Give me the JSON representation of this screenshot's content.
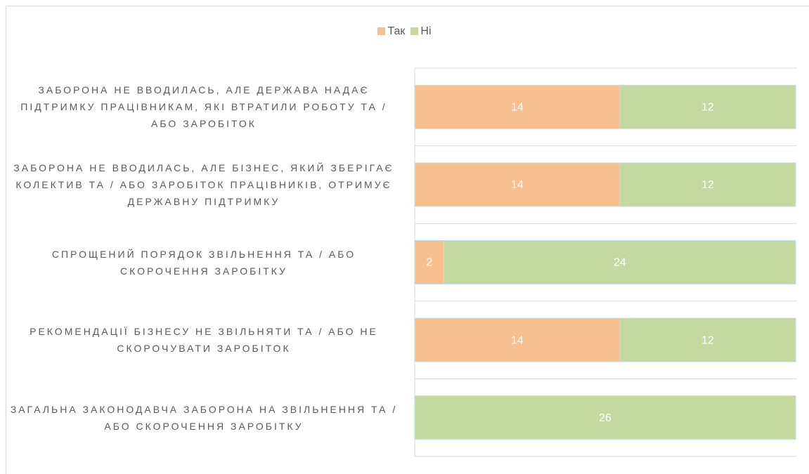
{
  "chart_data": {
    "type": "stacked-bar-horizontal",
    "categories": [
      "ЗАБОРОНА НЕ ВВОДИЛАСЬ, АЛЕ ДЕРЖАВА НАДАЄ ПІДТРИМКУ ПРАЦІВНИКАМ, ЯКІ ВТРАТИЛИ РОБОТУ ТА / АБО ЗАРОБІТОК",
      "ЗАБОРОНА НЕ ВВОДИЛАСЬ, АЛЕ БІЗНЕС, ЯКИЙ ЗБЕРІГАЄ КОЛЕКТИВ ТА / АБО ЗАРОБІТОК ПРАЦІВНИКІВ, ОТРИМУЄ ДЕРЖАВНУ ПІДТРИМКУ",
      "СПРОЩЕНИЙ ПОРЯДОК ЗВІЛЬНЕННЯ ТА / АБО СКОРОЧЕННЯ ЗАРОБІТКУ",
      "РЕКОМЕНДАЦІЇ БІЗНЕСУ НЕ ЗВІЛЬНЯТИ ТА / АБО НЕ СКОРОЧУВАТИ ЗАРОБІТОК",
      "ЗАГАЛЬНА ЗАКОНОДАВЧА ЗАБОРОНА НА ЗВІЛЬНЕННЯ ТА / АБО СКОРОЧЕННЯ ЗАРОБІТКУ"
    ],
    "series": [
      {
        "name": "Так",
        "color": "#f8bf8f",
        "values": [
          14,
          14,
          2,
          14,
          0
        ]
      },
      {
        "name": "Ні",
        "color": "#c5d89f",
        "values": [
          12,
          12,
          24,
          12,
          26
        ]
      }
    ],
    "xlim": [
      0,
      26
    ]
  }
}
